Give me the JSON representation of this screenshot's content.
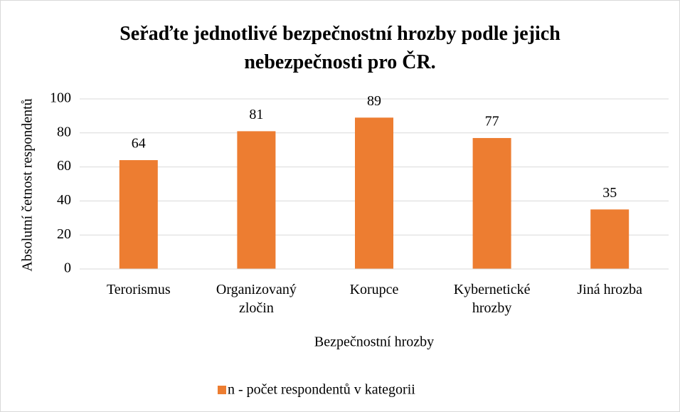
{
  "chart_data": {
    "type": "bar",
    "title": "Seřaďte jednotlivé bezpečnostní hrozby podle jejich nebezpečnosti pro ČR.",
    "xlabel": "Bezpečnostní hrozby",
    "ylabel": "Absolutní četnost respondentů",
    "categories": [
      "Terorismus",
      "Organizovaný zločin",
      "Korupce",
      "Kybernetické hrozby",
      "Jiná hrozba"
    ],
    "series": [
      {
        "name": "n - počet respondentů v kategorii",
        "color": "#ed7d31",
        "values": [
          64,
          81,
          89,
          77,
          35
        ]
      }
    ],
    "ylim": [
      0,
      100
    ],
    "yticks": [
      0,
      20,
      40,
      60,
      80,
      100
    ],
    "grid": true,
    "legend": "bottom"
  }
}
